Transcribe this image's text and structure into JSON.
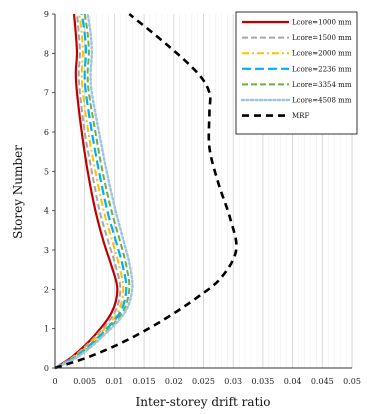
{
  "chart_data": {
    "type": "line",
    "xlabel": "Inter-storey drift ratio",
    "ylabel": "Storey Number",
    "xlim": [
      0,
      0.05
    ],
    "ylim": [
      0,
      9
    ],
    "xticks": [
      0,
      0.005,
      0.01,
      0.015,
      0.02,
      0.025,
      0.03,
      0.035,
      0.04,
      0.045,
      0.05
    ],
    "xtick_labels": [
      "0",
      "0.005",
      "0.01",
      "0.015",
      "0.02",
      "0.025",
      "0.03",
      "0.035",
      "0.04",
      "0.045",
      "0.05"
    ],
    "yticks": [
      0,
      1,
      2,
      3,
      4,
      5,
      6,
      7,
      8,
      9
    ],
    "ytick_labels": [
      "0",
      "1",
      "2",
      "3",
      "4",
      "5",
      "6",
      "7",
      "8",
      "9"
    ],
    "grid": "vertical",
    "legend_position": "top-right",
    "series": [
      {
        "name": "Lcore=1000 mm",
        "color": "#c00000",
        "dash": "solid",
        "points": [
          [
            0,
            0
          ],
          [
            0.003,
            0.3
          ],
          [
            0.0065,
            0.8
          ],
          [
            0.0095,
            1.4
          ],
          [
            0.0105,
            2.0
          ],
          [
            0.0095,
            2.6
          ],
          [
            0.0082,
            3.2
          ],
          [
            0.0068,
            4.0
          ],
          [
            0.0055,
            5.0
          ],
          [
            0.0045,
            6.0
          ],
          [
            0.0037,
            7.0
          ],
          [
            0.0035,
            7.5
          ],
          [
            0.0037,
            8.0
          ],
          [
            0.0035,
            8.5
          ],
          [
            0.0032,
            9.0
          ]
        ]
      },
      {
        "name": "Lcore=1500 mm",
        "color": "#a6a6a6",
        "dash": "dash",
        "points": [
          [
            0,
            0
          ],
          [
            0.0032,
            0.3
          ],
          [
            0.0068,
            0.8
          ],
          [
            0.01,
            1.4
          ],
          [
            0.011,
            2.0
          ],
          [
            0.0102,
            2.6
          ],
          [
            0.009,
            3.2
          ],
          [
            0.0075,
            4.0
          ],
          [
            0.0062,
            5.0
          ],
          [
            0.005,
            6.0
          ],
          [
            0.0042,
            7.0
          ],
          [
            0.004,
            7.5
          ],
          [
            0.0042,
            8.0
          ],
          [
            0.004,
            8.5
          ],
          [
            0.0037,
            9.0
          ]
        ]
      },
      {
        "name": "Lcore=2000 mm",
        "color": "#ffc000",
        "dash": "dashdot",
        "points": [
          [
            0,
            0
          ],
          [
            0.0034,
            0.3
          ],
          [
            0.0071,
            0.8
          ],
          [
            0.0105,
            1.4
          ],
          [
            0.0115,
            2.0
          ],
          [
            0.0108,
            2.6
          ],
          [
            0.0097,
            3.2
          ],
          [
            0.0082,
            4.0
          ],
          [
            0.0068,
            5.0
          ],
          [
            0.0056,
            6.0
          ],
          [
            0.0047,
            7.0
          ],
          [
            0.0045,
            7.5
          ],
          [
            0.0047,
            8.0
          ],
          [
            0.0045,
            8.5
          ],
          [
            0.0041,
            9.0
          ]
        ]
      },
      {
        "name": "Lcore=2236 mm",
        "color": "#00b0f0",
        "dash": "longdash",
        "points": [
          [
            0,
            0
          ],
          [
            0.0036,
            0.3
          ],
          [
            0.0074,
            0.8
          ],
          [
            0.0109,
            1.4
          ],
          [
            0.012,
            2.0
          ],
          [
            0.0114,
            2.6
          ],
          [
            0.0103,
            3.2
          ],
          [
            0.0088,
            4.0
          ],
          [
            0.0074,
            5.0
          ],
          [
            0.0062,
            6.0
          ],
          [
            0.0052,
            7.0
          ],
          [
            0.005,
            7.5
          ],
          [
            0.0052,
            8.0
          ],
          [
            0.005,
            8.5
          ],
          [
            0.0045,
            9.0
          ]
        ]
      },
      {
        "name": "Lcore=3354 mm",
        "color": "#70ad47",
        "dash": "dash",
        "points": [
          [
            0,
            0
          ],
          [
            0.0038,
            0.3
          ],
          [
            0.0077,
            0.8
          ],
          [
            0.0113,
            1.4
          ],
          [
            0.0125,
            2.0
          ],
          [
            0.012,
            2.6
          ],
          [
            0.011,
            3.2
          ],
          [
            0.0095,
            4.0
          ],
          [
            0.008,
            5.0
          ],
          [
            0.0068,
            6.0
          ],
          [
            0.0057,
            7.0
          ],
          [
            0.0055,
            7.5
          ],
          [
            0.0057,
            8.0
          ],
          [
            0.0055,
            8.5
          ],
          [
            0.005,
            9.0
          ]
        ]
      },
      {
        "name": "Lcore=4508 mm",
        "color": "#9dc3e6",
        "dash": "dot",
        "points": [
          [
            0,
            0
          ],
          [
            0.004,
            0.3
          ],
          [
            0.008,
            0.8
          ],
          [
            0.0117,
            1.4
          ],
          [
            0.013,
            2.0
          ],
          [
            0.0126,
            2.6
          ],
          [
            0.0116,
            3.2
          ],
          [
            0.0102,
            4.0
          ],
          [
            0.0087,
            5.0
          ],
          [
            0.0074,
            6.0
          ],
          [
            0.0062,
            7.0
          ],
          [
            0.006,
            7.5
          ],
          [
            0.0062,
            8.0
          ],
          [
            0.006,
            8.5
          ],
          [
            0.0055,
            9.0
          ]
        ]
      },
      {
        "name": "MRF",
        "color": "#000000",
        "dash": "heavydash",
        "points": [
          [
            0,
            0
          ],
          [
            0.006,
            0.3
          ],
          [
            0.012,
            0.7
          ],
          [
            0.018,
            1.2
          ],
          [
            0.024,
            1.8
          ],
          [
            0.028,
            2.3
          ],
          [
            0.0305,
            3.0
          ],
          [
            0.0295,
            3.8
          ],
          [
            0.0275,
            4.7
          ],
          [
            0.026,
            5.6
          ],
          [
            0.026,
            6.5
          ],
          [
            0.026,
            7.0
          ],
          [
            0.024,
            7.5
          ],
          [
            0.019,
            8.2
          ],
          [
            0.0125,
            9.0
          ]
        ]
      }
    ]
  }
}
